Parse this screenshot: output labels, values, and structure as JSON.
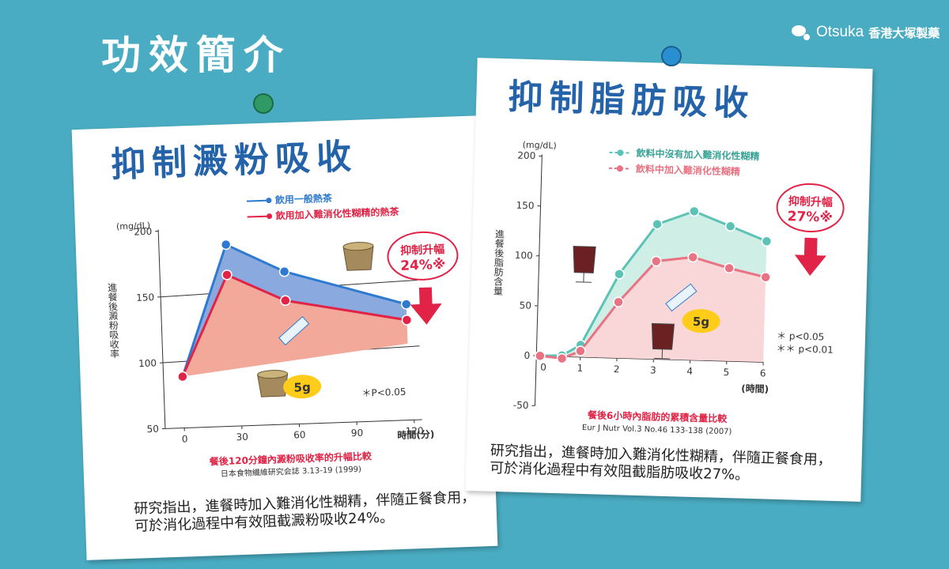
{
  "page": {
    "title": "功效簡介"
  },
  "brand": {
    "name_en": "Otsuka",
    "name_zh": "香港大塚製藥"
  },
  "colors": {
    "background": "#4aacc2",
    "title_blue": "#2463a9",
    "red": "#e02346",
    "blue": "#2f7ad1",
    "teal": "#5cc2b6",
    "pink": "#e97383"
  },
  "left": {
    "title": "抑制澱粉吸收",
    "legend": [
      "飲用一般熱茶",
      "飲用加入難消化性糊精的熱茶"
    ],
    "callout": {
      "label": "抑制升幅",
      "value": "24%※"
    },
    "dose": "5g",
    "note": "＊P<0.05",
    "caption": "餐後120分鐘內澱粉吸收率的升幅比較",
    "source": "日本食物纖維研究会誌 3.13-19 (1999)",
    "description": [
      "研究指出，進餐時加入難消化性糊精，伴隨正餐食用，",
      "可於消化過程中有效阻截澱粉吸收24%。"
    ]
  },
  "right": {
    "title": "抑制脂肪吸收",
    "legend": [
      "飲料中沒有加入難消化性糊精",
      "飲料中加入難消化性糊精"
    ],
    "callout": {
      "label": "抑制升幅",
      "value": "27%※"
    },
    "dose": "5g",
    "notes": [
      "＊ p<0.05",
      "＊＊ p<0.01"
    ],
    "caption": "餐後6小時內脂肪的累積含量比較",
    "source": "Eur J Nutr Vol.3 No.46 133-138 (2007)",
    "description": [
      "研究指出，進餐時加入難消化性糊精，伴隨正餐食用，",
      "可於消化過程中有效阻截脂肪吸收27%。"
    ]
  },
  "chart_data": [
    {
      "type": "line",
      "title": "",
      "xlabel": "時間(分)",
      "ylabel": "進餐後澱粉吸收率",
      "yunit": "(mg/dL)",
      "x": [
        0,
        30,
        60,
        90,
        120
      ],
      "xticks": [
        0,
        30,
        60,
        90,
        120
      ],
      "yticks": [
        50,
        100,
        150,
        200
      ],
      "ylim": [
        50,
        200
      ],
      "xlim": [
        -10,
        120
      ],
      "series": [
        {
          "name": "飲用一般熱茶",
          "color": "#2f7ad1",
          "x": [
            0,
            25,
            55,
            118
          ],
          "values": [
            89,
            188,
            166,
            138
          ]
        },
        {
          "name": "飲用加入難消化性糊精的熱茶",
          "color": "#e02346",
          "x": [
            0,
            25,
            55,
            118
          ],
          "values": [
            89,
            165,
            144,
            126
          ]
        }
      ],
      "annotations": [
        "*"
      ]
    },
    {
      "type": "line",
      "title": "",
      "xlabel": "(時間)",
      "ylabel": "進餐後脂肪含量",
      "yunit": "(mg/dL)",
      "x": [
        0,
        1,
        2,
        3,
        4,
        5,
        6
      ],
      "xticks": [
        0,
        1,
        2,
        3,
        4,
        5,
        6
      ],
      "yticks": [
        -50,
        0,
        50,
        100,
        150,
        200
      ],
      "ylim": [
        -50,
        200
      ],
      "xlim": [
        -0.2,
        6
      ],
      "series": [
        {
          "name": "飲料中沒有加入難消化性糊精",
          "color": "#5cc2b6",
          "x": [
            -0.1,
            0.5,
            1,
            2,
            3,
            4,
            5,
            6
          ],
          "values": [
            0,
            1,
            12,
            84,
            135,
            149,
            135,
            121
          ]
        },
        {
          "name": "飲料中加入難消化性糊精",
          "color": "#e97383",
          "x": [
            -0.1,
            0.5,
            1,
            2,
            3,
            4,
            5,
            6
          ],
          "values": [
            0,
            -2,
            6,
            56,
            98,
            103,
            93,
            85
          ]
        }
      ],
      "annotations": [
        "**",
        "**",
        "*",
        "*"
      ]
    }
  ]
}
